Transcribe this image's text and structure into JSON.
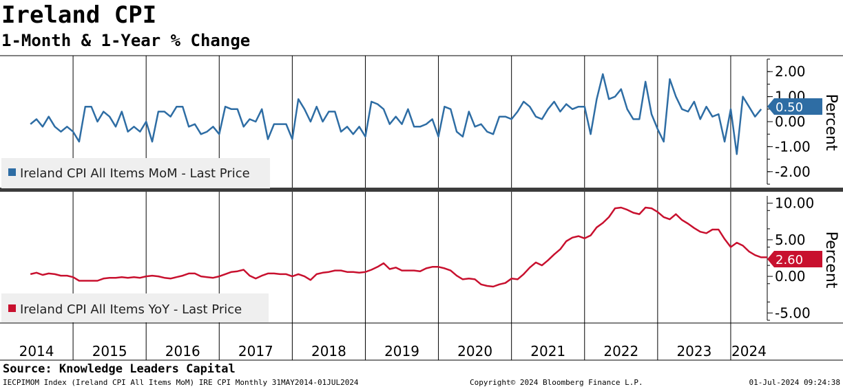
{
  "title": "Ireland CPI",
  "subtitle": "1-Month & 1-Year % Change",
  "source": "Source: Knowledge Leaders Capital",
  "footer": {
    "left": "IECPIMOM Index (Ireland CPI All Items MoM) IRE CPI  Monthly 31MAY2014-01JUL2024",
    "center": "Copyright© 2024 Bloomberg Finance L.P.",
    "right": "01-Jul-2024 09:24:38"
  },
  "chart_data": [
    {
      "type": "line",
      "panel": "top",
      "series_name": "Ireland CPI All Items MoM - Last Price",
      "ylabel": "Percent",
      "ylim": [
        -2.5,
        2.5
      ],
      "yticks": [
        -2,
        -1,
        0,
        1,
        2
      ],
      "ytick_labels": [
        "-2.00",
        "-1.00",
        "0.00",
        "1.00",
        "2.00"
      ],
      "color": "#2e6da4",
      "last_value_label": "0.50",
      "start": "2014-06",
      "values": [
        -0.1,
        0.1,
        -0.2,
        0.2,
        -0.2,
        -0.4,
        -0.2,
        -0.4,
        -0.8,
        0.6,
        0.6,
        0.0,
        0.4,
        0.2,
        -0.2,
        0.4,
        -0.4,
        -0.2,
        -0.4,
        0.0,
        -0.8,
        0.4,
        0.4,
        0.2,
        0.6,
        0.6,
        -0.2,
        -0.1,
        -0.5,
        -0.4,
        -0.2,
        -0.5,
        0.6,
        0.5,
        0.5,
        -0.2,
        0.1,
        0.0,
        0.5,
        -0.7,
        -0.1,
        -0.1,
        -0.1,
        -0.7,
        0.9,
        0.5,
        0.0,
        0.6,
        0.0,
        0.4,
        0.4,
        -0.4,
        -0.2,
        -0.5,
        -0.2,
        -0.6,
        0.8,
        0.7,
        0.5,
        -0.1,
        0.2,
        -0.1,
        0.5,
        -0.2,
        -0.2,
        -0.1,
        0.1,
        -0.6,
        0.6,
        0.5,
        -0.4,
        -0.6,
        0.4,
        -0.2,
        -0.1,
        -0.4,
        -0.5,
        0.2,
        0.2,
        0.1,
        0.4,
        0.8,
        0.6,
        0.2,
        0.1,
        0.5,
        0.8,
        0.4,
        0.7,
        0.5,
        0.6,
        0.6,
        -0.5,
        0.9,
        1.9,
        0.9,
        1.0,
        1.3,
        0.5,
        0.1,
        0.1,
        1.6,
        0.3,
        -0.3,
        -0.8,
        1.7,
        1.0,
        0.5,
        0.4,
        0.8,
        0.1,
        0.6,
        0.2,
        0.3,
        -0.8,
        0.5,
        -1.3,
        1.0,
        0.6,
        0.2,
        0.5
      ]
    },
    {
      "type": "line",
      "panel": "bottom",
      "series_name": "Ireland CPI All Items YoY - Last Price",
      "ylabel": "Percent",
      "ylim": [
        -6,
        11
      ],
      "yticks": [
        -5,
        0,
        5,
        10
      ],
      "ytick_labels": [
        "-5.00",
        "0.00",
        "5.00",
        "10.00"
      ],
      "color": "#c8102e",
      "last_value_label": "2.60",
      "start": "2014-06",
      "values": [
        0.3,
        0.5,
        0.2,
        0.4,
        0.3,
        0.1,
        0.1,
        -0.1,
        -0.6,
        -0.6,
        -0.6,
        -0.6,
        -0.3,
        -0.2,
        -0.2,
        -0.1,
        -0.2,
        -0.1,
        -0.2,
        0.0,
        0.1,
        0.0,
        -0.2,
        -0.3,
        -0.1,
        0.1,
        0.4,
        0.4,
        0.0,
        -0.1,
        -0.2,
        0.0,
        0.3,
        0.6,
        0.7,
        0.9,
        0.1,
        -0.3,
        0.1,
        0.4,
        0.4,
        0.3,
        0.3,
        0.0,
        0.3,
        0.0,
        -0.5,
        0.3,
        0.5,
        0.6,
        0.8,
        0.8,
        0.6,
        0.6,
        0.5,
        0.6,
        0.9,
        1.3,
        1.8,
        1.0,
        1.2,
        0.8,
        0.8,
        0.8,
        0.7,
        1.1,
        1.3,
        1.3,
        1.1,
        0.8,
        0.1,
        -0.4,
        -0.3,
        -0.4,
        -1.1,
        -1.3,
        -1.4,
        -1.1,
        -0.9,
        -0.3,
        -0.4,
        0.3,
        1.2,
        1.9,
        1.5,
        2.2,
        3.0,
        3.7,
        4.8,
        5.3,
        5.5,
        5.2,
        5.6,
        6.7,
        7.3,
        8.1,
        9.3,
        9.4,
        9.1,
        8.7,
        8.5,
        9.4,
        9.3,
        8.8,
        8.1,
        7.8,
        8.5,
        7.7,
        7.2,
        6.6,
        6.1,
        5.9,
        6.4,
        6.4,
        5.1,
        4.0,
        4.6,
        4.2,
        3.4,
        2.9,
        2.6,
        2.6
      ]
    }
  ],
  "x_axis": {
    "type": "time",
    "start": "2014-01",
    "end": "2024-07",
    "tick_labels": [
      "2014",
      "2015",
      "2016",
      "2017",
      "2018",
      "2019",
      "2020",
      "2021",
      "2022",
      "2023",
      "2024"
    ]
  }
}
